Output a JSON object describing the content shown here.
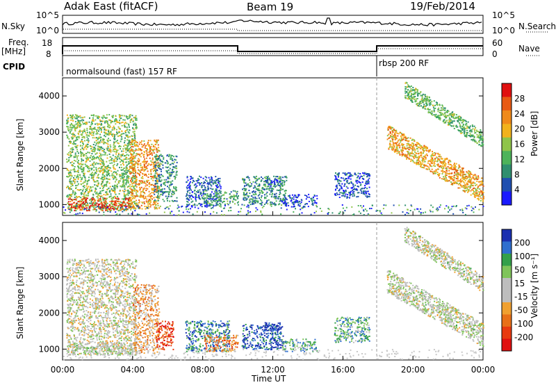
{
  "header": {
    "station": "Adak East (fitACF)",
    "beam": "Beam 19",
    "date": "19/Feb/2014"
  },
  "strip_labels": {
    "nsky": "N.Sky",
    "nsearch": "N.Search",
    "freq": "Freq.",
    "freq_unit": "[MHz]",
    "nave": "Nave",
    "cpid": "CPID",
    "nsky_ticks": [
      "10^5",
      "10^0"
    ],
    "freq_ticks": [
      "18",
      "8"
    ],
    "nave_ticks": [
      "60",
      "0"
    ]
  },
  "cpid_segments": [
    {
      "label": "normalsound (fast) 157 RF",
      "start_hour": 0,
      "end_hour": 18
    },
    {
      "label": "rbsp 200 RF",
      "start_hour": 18,
      "end_hour": 24
    }
  ],
  "colors": {
    "power": [
      "#1a1aff",
      "#1f4fb0",
      "#2f8f6f",
      "#4db35a",
      "#8fc44a",
      "#f2b21c",
      "#f08a1a",
      "#e85a14",
      "#e01010"
    ],
    "velocity": [
      "#1a2fb0",
      "#2f6fcf",
      "#33a04a",
      "#7fc45a",
      "#bdbdbd",
      "#bdbdbd",
      "#f0a030",
      "#e87018",
      "#e83a10",
      "#e01010"
    ]
  },
  "chart_data": [
    {
      "type": "heatmap",
      "title": "",
      "xlabel": "Time UT",
      "ylabel": "Slant Range [km]",
      "x_ticks": [
        "00:00",
        "04:00",
        "08:00",
        "12:00",
        "16:00",
        "20:00",
        "00:00"
      ],
      "y_ticks": [
        "1000",
        "2000",
        "3000",
        "4000"
      ],
      "xlim_hours": [
        0,
        24
      ],
      "ylim_km": [
        700,
        4500
      ],
      "colorbar_label": "Power [dB]",
      "colorbar_ticks": [
        "4",
        "8",
        "12",
        "16",
        "20",
        "24",
        "28"
      ],
      "zlim": [
        0,
        30
      ],
      "regions": [
        {
          "t0": 0.2,
          "t1": 4.2,
          "r0": 850,
          "r1": 3500,
          "level": 0.45
        },
        {
          "t0": 0.3,
          "t1": 3.8,
          "r0": 850,
          "r1": 1200,
          "level": 0.9
        },
        {
          "t0": 3.8,
          "t1": 5.5,
          "r0": 900,
          "r1": 2800,
          "level": 0.7
        },
        {
          "t0": 5.2,
          "t1": 6.5,
          "r0": 1100,
          "r1": 2400,
          "level": 0.3
        },
        {
          "t0": 7.0,
          "t1": 9.0,
          "r0": 950,
          "r1": 1800,
          "level": 0.15
        },
        {
          "t0": 8.0,
          "t1": 10.0,
          "r0": 1000,
          "r1": 1400,
          "level": 0.35
        },
        {
          "t0": 10.2,
          "t1": 12.8,
          "r0": 1000,
          "r1": 1800,
          "level": 0.3
        },
        {
          "t0": 11.5,
          "t1": 12.4,
          "r0": 1500,
          "r1": 1700,
          "level": 0.15
        },
        {
          "t0": 12.5,
          "t1": 14.5,
          "r0": 950,
          "r1": 1300,
          "level": 0.15
        },
        {
          "t0": 15.5,
          "t1": 17.5,
          "r0": 1200,
          "r1": 1900,
          "level": 0.15
        }
      ],
      "bands": [
        {
          "t0": 18.5,
          "t1": 24,
          "r_start": 2900,
          "r_end": 1400,
          "width": 650,
          "level": 0.65
        },
        {
          "t0": 19.5,
          "t1": 24,
          "r_start": 4200,
          "r_end": 2800,
          "width": 450,
          "level": 0.4
        }
      ]
    },
    {
      "type": "heatmap",
      "title": "",
      "xlabel": "Time UT",
      "ylabel": "Slant Range [km]",
      "x_ticks": [
        "00:00",
        "04:00",
        "08:00",
        "12:00",
        "16:00",
        "20:00",
        "00:00"
      ],
      "y_ticks": [
        "1000",
        "2000",
        "3000",
        "4000"
      ],
      "xlim_hours": [
        0,
        24
      ],
      "ylim_km": [
        700,
        4500
      ],
      "colorbar_label": "Velocity [m s⁻¹]",
      "colorbar_ticks": [
        "200",
        "100",
        "50",
        "15",
        "-15",
        "-50",
        "-100",
        "-200"
      ],
      "zlim": [
        -250,
        250
      ],
      "regions": [
        {
          "t0": 0.2,
          "t1": 4.2,
          "r0": 850,
          "r1": 3500,
          "level": 0.5
        },
        {
          "t0": 0.3,
          "t1": 4.0,
          "r0": 850,
          "r1": 1200,
          "level": 0.45
        },
        {
          "t0": 4.0,
          "t1": 5.5,
          "r0": 900,
          "r1": 2800,
          "level": 0.65
        },
        {
          "t0": 5.3,
          "t1": 6.3,
          "r0": 1000,
          "r1": 1800,
          "level": 0.85
        },
        {
          "t0": 7.0,
          "t1": 9.5,
          "r0": 950,
          "r1": 1800,
          "level": 0.2
        },
        {
          "t0": 8.0,
          "t1": 10.0,
          "r0": 950,
          "r1": 1400,
          "level": 0.7
        },
        {
          "t0": 10.2,
          "t1": 12.6,
          "r0": 1000,
          "r1": 1700,
          "level": 0.1
        },
        {
          "t0": 11.5,
          "t1": 12.4,
          "r0": 1450,
          "r1": 1750,
          "level": 0.05
        },
        {
          "t0": 12.5,
          "t1": 14.5,
          "r0": 950,
          "r1": 1300,
          "level": 0.3
        },
        {
          "t0": 15.5,
          "t1": 17.5,
          "r0": 1200,
          "r1": 1900,
          "level": 0.3
        }
      ],
      "bands": [
        {
          "t0": 18.5,
          "t1": 24,
          "r_start": 2900,
          "r_end": 1400,
          "width": 650,
          "level": 0.47
        },
        {
          "t0": 19.5,
          "t1": 24,
          "r_start": 4200,
          "r_end": 2800,
          "width": 450,
          "level": 0.47
        }
      ]
    }
  ]
}
